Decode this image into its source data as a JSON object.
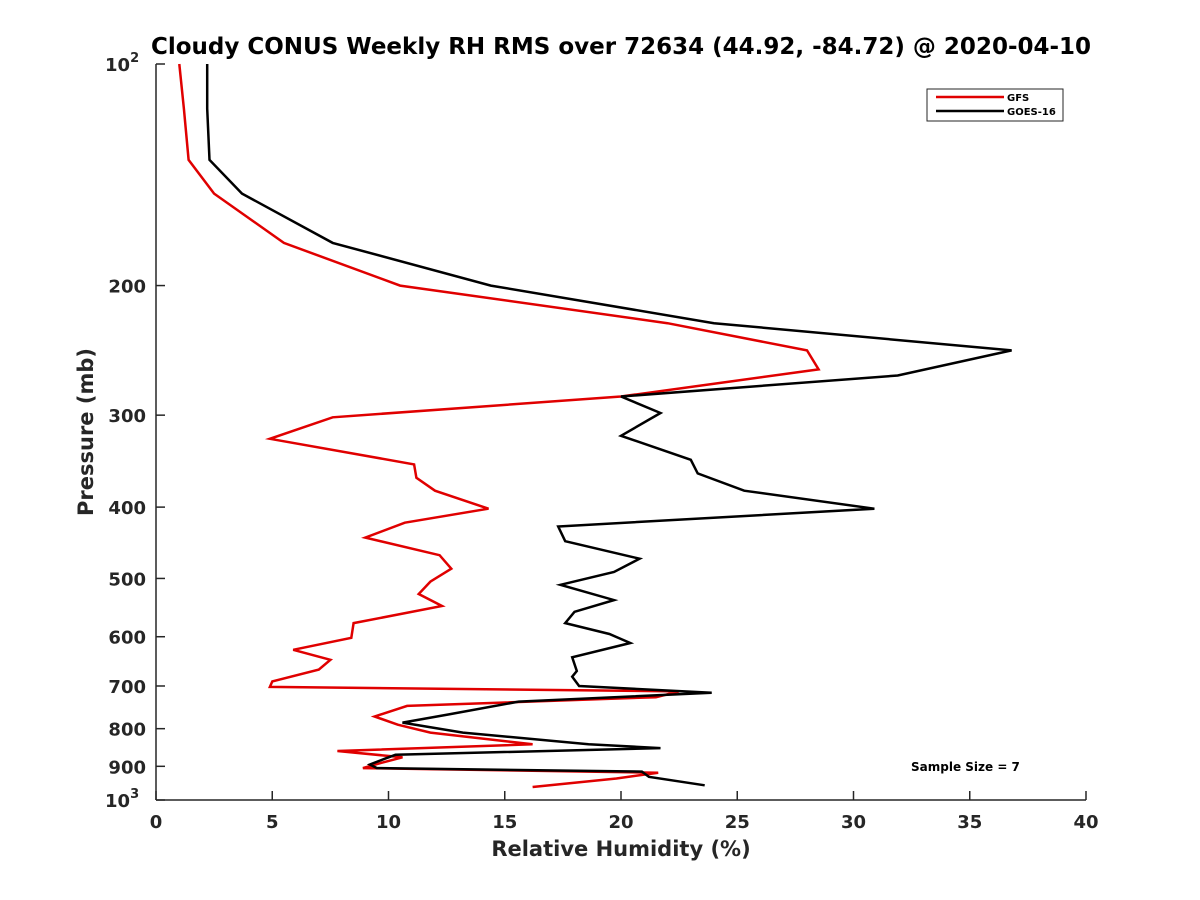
{
  "chart_data": {
    "type": "line",
    "title": "Cloudy CONUS Weekly RH RMS over 72634 (44.92, -84.72) @ 2020-04-10",
    "xlabel": "Relative Humidity (%)",
    "ylabel": "Pressure (mb)",
    "xlim": [
      0,
      40
    ],
    "ylim": [
      100,
      1000
    ],
    "y_scale": "log",
    "y_reversed": true,
    "grid": false,
    "x_ticks": [
      {
        "value": 0,
        "label": "0"
      },
      {
        "value": 5,
        "label": "5"
      },
      {
        "value": 10,
        "label": "10"
      },
      {
        "value": 15,
        "label": "15"
      },
      {
        "value": 20,
        "label": "20"
      },
      {
        "value": 25,
        "label": "25"
      },
      {
        "value": 30,
        "label": "30"
      },
      {
        "value": 35,
        "label": "35"
      },
      {
        "value": 40,
        "label": "40"
      }
    ],
    "y_ticks": [
      {
        "value": 100,
        "base": "10",
        "exp": "2"
      },
      {
        "value": 200,
        "base": "200",
        "exp": ""
      },
      {
        "value": 300,
        "base": "300",
        "exp": ""
      },
      {
        "value": 400,
        "base": "400",
        "exp": ""
      },
      {
        "value": 500,
        "base": "500",
        "exp": ""
      },
      {
        "value": 600,
        "base": "600",
        "exp": ""
      },
      {
        "value": 700,
        "base": "700",
        "exp": ""
      },
      {
        "value": 800,
        "base": "800",
        "exp": ""
      },
      {
        "value": 900,
        "base": "900",
        "exp": ""
      },
      {
        "value": 1000,
        "base": "10",
        "exp": "3"
      }
    ],
    "legend_position": "top-right",
    "annotation": "Sample Size = 7",
    "series": [
      {
        "name": "GFS",
        "color": "#e00000",
        "points": [
          [
            1.0,
            100
          ],
          [
            1.2,
            115
          ],
          [
            1.4,
            135
          ],
          [
            2.5,
            150
          ],
          [
            5.5,
            175
          ],
          [
            10.5,
            200
          ],
          [
            22,
            225
          ],
          [
            28,
            245
          ],
          [
            28.5,
            260
          ],
          [
            20,
            283
          ],
          [
            7.6,
            302
          ],
          [
            4.9,
            323
          ],
          [
            11.1,
            350
          ],
          [
            11.2,
            365
          ],
          [
            12,
            380
          ],
          [
            14.3,
            402
          ],
          [
            10.7,
            420
          ],
          [
            9.0,
            440
          ],
          [
            12.2,
            465
          ],
          [
            12.7,
            485
          ],
          [
            11.8,
            505
          ],
          [
            11.3,
            525
          ],
          [
            12.3,
            545
          ],
          [
            8.5,
            575
          ],
          [
            8.4,
            602
          ],
          [
            5.9,
            625
          ],
          [
            7.5,
            645
          ],
          [
            7.0,
            665
          ],
          [
            5.0,
            690
          ],
          [
            4.9,
            702
          ],
          [
            22.5,
            712
          ],
          [
            21.5,
            725
          ],
          [
            10.8,
            745
          ],
          [
            9.4,
            770
          ],
          [
            10.4,
            790
          ],
          [
            11.8,
            810
          ],
          [
            16.2,
            840
          ],
          [
            7.8,
            858
          ],
          [
            10.6,
            875
          ],
          [
            9.7,
            890
          ],
          [
            8.9,
            905
          ],
          [
            21.6,
            918
          ],
          [
            19.8,
            935
          ],
          [
            16.2,
            960
          ]
        ]
      },
      {
        "name": "GOES-16",
        "color": "#000000",
        "points": [
          [
            2.2,
            100
          ],
          [
            2.2,
            115
          ],
          [
            2.3,
            135
          ],
          [
            3.7,
            150
          ],
          [
            7.6,
            175
          ],
          [
            14.4,
            200
          ],
          [
            24,
            225
          ],
          [
            36.8,
            245
          ],
          [
            31.9,
            265
          ],
          [
            20,
            283
          ],
          [
            21.7,
            298
          ],
          [
            20.0,
            320
          ],
          [
            23,
            345
          ],
          [
            23.3,
            360
          ],
          [
            25.3,
            380
          ],
          [
            30.9,
            402
          ],
          [
            17.3,
            425
          ],
          [
            17.6,
            445
          ],
          [
            20.8,
            470
          ],
          [
            19.7,
            490
          ],
          [
            17.4,
            510
          ],
          [
            19.7,
            535
          ],
          [
            18.0,
            555
          ],
          [
            17.6,
            575
          ],
          [
            19.5,
            595
          ],
          [
            20.4,
            612
          ],
          [
            17.9,
            640
          ],
          [
            18.1,
            668
          ],
          [
            17.9,
            680
          ],
          [
            18.2,
            700
          ],
          [
            23.9,
            715
          ],
          [
            15.6,
            735
          ],
          [
            12.6,
            765
          ],
          [
            10.6,
            785
          ],
          [
            13.2,
            810
          ],
          [
            18.6,
            840
          ],
          [
            21.7,
            850
          ],
          [
            10.3,
            868
          ],
          [
            9.8,
            880
          ],
          [
            9.2,
            895
          ],
          [
            9.5,
            905
          ],
          [
            20.9,
            915
          ],
          [
            21.2,
            930
          ],
          [
            23.6,
            955
          ]
        ]
      }
    ]
  }
}
